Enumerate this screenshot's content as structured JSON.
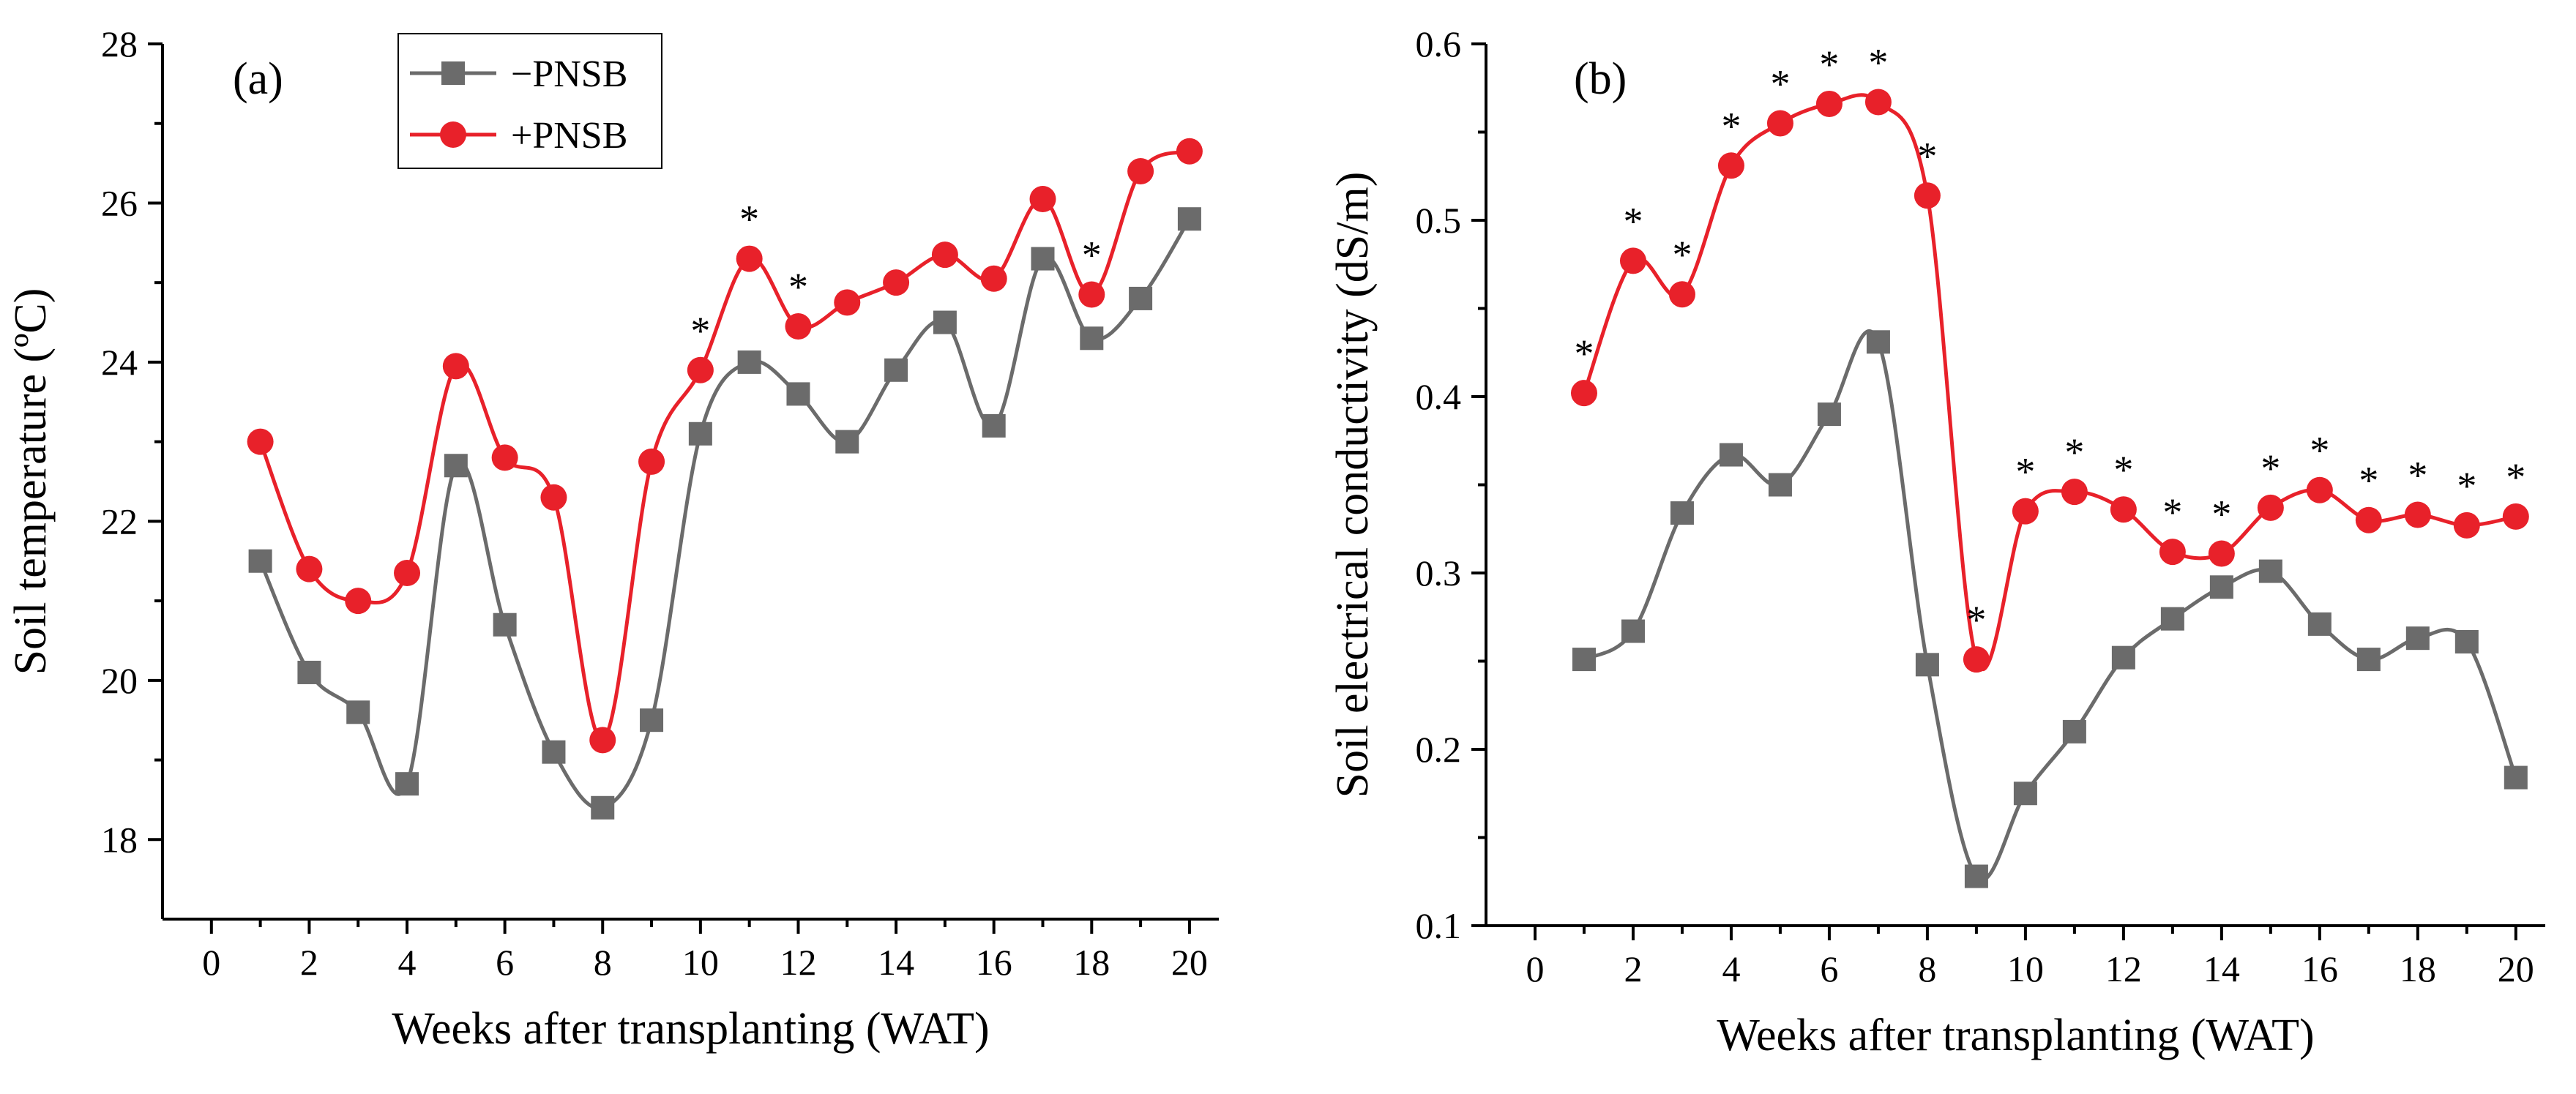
{
  "chart_data": [
    {
      "type": "line",
      "panel_label": "(a)",
      "title": "",
      "xlabel": "Weeks after transplanting (WAT)",
      "ylabel": "Soil temperature (ºC)",
      "xlim": [
        -1,
        20.6
      ],
      "ylim": [
        17,
        28
      ],
      "xticks": [
        0,
        2,
        4,
        6,
        8,
        10,
        12,
        14,
        16,
        18,
        20
      ],
      "yticks": [
        18,
        20,
        22,
        24,
        26,
        28
      ],
      "x": [
        1,
        2,
        3,
        4,
        5,
        6,
        7,
        8,
        9,
        10,
        11,
        12,
        13,
        14,
        15,
        16,
        17,
        18,
        19,
        20
      ],
      "legend_position": "top-left",
      "series": [
        {
          "name": "−PNSB",
          "color": "#6b6b6b",
          "marker": "square",
          "values": [
            21.5,
            20.1,
            19.6,
            18.7,
            22.7,
            20.7,
            19.1,
            18.4,
            19.5,
            23.1,
            24.0,
            23.6,
            23.0,
            23.9,
            24.5,
            23.2,
            25.3,
            24.3,
            24.8,
            25.8
          ]
        },
        {
          "name": "+PNSB",
          "color": "#e8212a",
          "marker": "circle",
          "values": [
            23.0,
            21.4,
            21.0,
            21.35,
            23.95,
            22.8,
            22.3,
            19.25,
            22.75,
            23.9,
            25.3,
            24.45,
            24.75,
            25.0,
            25.35,
            25.05,
            26.05,
            24.85,
            26.4,
            26.65
          ]
        }
      ],
      "significance_weeks": [
        10,
        11,
        12,
        18
      ],
      "significance_symbol": "*"
    },
    {
      "type": "line",
      "panel_label": "(b)",
      "title": "",
      "xlabel": "Weeks after transplanting (WAT)",
      "ylabel": "Soil electrical conductivity (dS/m)",
      "xlim": [
        -1,
        20.6
      ],
      "ylim": [
        0.1,
        0.6
      ],
      "xticks": [
        0,
        2,
        4,
        6,
        8,
        10,
        12,
        14,
        16,
        18,
        20
      ],
      "yticks": [
        0.1,
        0.2,
        0.3,
        0.4,
        0.5,
        0.6
      ],
      "x": [
        1,
        2,
        3,
        4,
        5,
        6,
        7,
        8,
        9,
        10,
        11,
        12,
        13,
        14,
        15,
        16,
        17,
        18,
        19,
        20
      ],
      "series": [
        {
          "name": "−PNSB",
          "color": "#6b6b6b",
          "marker": "square",
          "values": [
            0.251,
            0.267,
            0.334,
            0.367,
            0.35,
            0.39,
            0.431,
            0.248,
            0.128,
            0.175,
            0.21,
            0.252,
            0.274,
            0.292,
            0.301,
            0.271,
            0.251,
            0.263,
            0.261,
            0.184
          ]
        },
        {
          "name": "+PNSB",
          "color": "#e8212a",
          "marker": "circle",
          "values": [
            0.402,
            0.477,
            0.458,
            0.531,
            0.555,
            0.566,
            0.567,
            0.514,
            0.251,
            0.335,
            0.346,
            0.336,
            0.312,
            0.311,
            0.337,
            0.347,
            0.33,
            0.333,
            0.327,
            0.332
          ]
        }
      ],
      "significance_weeks": [
        1,
        2,
        3,
        4,
        5,
        6,
        7,
        8,
        9,
        10,
        11,
        12,
        13,
        14,
        15,
        16,
        17,
        18,
        19,
        20
      ],
      "significance_symbol": "*"
    }
  ]
}
